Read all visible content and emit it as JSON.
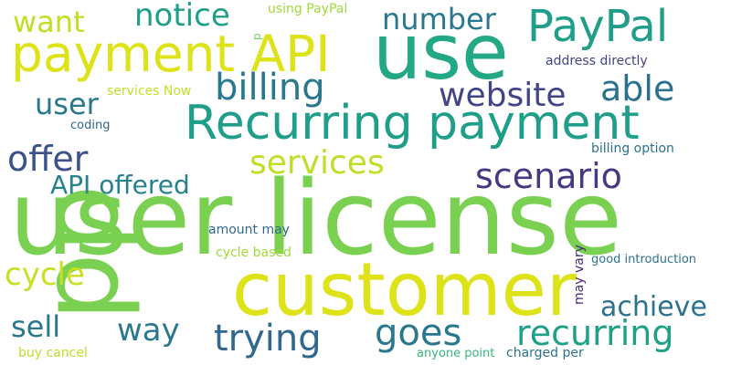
{
  "word_cloud": {
    "words": [
      {
        "text": "user license",
        "color": "#7ad151"
      },
      {
        "text": "pp",
        "color": "#7ad151"
      },
      {
        "text": "customer",
        "color": "#dde318"
      },
      {
        "text": "Recurring payment",
        "color": "#1f9e89"
      },
      {
        "text": "use",
        "color": "#22a884"
      },
      {
        "text": "payment API",
        "color": "#dde318"
      },
      {
        "text": "PayPal",
        "color": "#1f9e89"
      },
      {
        "text": "billing",
        "color": "#2a788e"
      },
      {
        "text": "website",
        "color": "#414487"
      },
      {
        "text": "scenario",
        "color": "#443983"
      },
      {
        "text": "trying",
        "color": "#31688e"
      },
      {
        "text": "recurring",
        "color": "#1fa187"
      },
      {
        "text": "goes",
        "color": "#2a788e"
      },
      {
        "text": "services",
        "color": "#bddf26"
      },
      {
        "text": "offer",
        "color": "#3b528b"
      },
      {
        "text": "able",
        "color": "#2c728e"
      },
      {
        "text": "number",
        "color": "#2a788e"
      },
      {
        "text": "notice",
        "color": "#1f9e89"
      },
      {
        "text": "want",
        "color": "#c2df23"
      },
      {
        "text": "user",
        "color": "#2a788e"
      },
      {
        "text": "API offered",
        "color": "#26828e"
      },
      {
        "text": "cycle",
        "color": "#c8e020"
      },
      {
        "text": "sell",
        "color": "#2a788e"
      },
      {
        "text": "way",
        "color": "#2a788e"
      },
      {
        "text": "achieve",
        "color": "#2c728e"
      },
      {
        "text": "using PayPal",
        "color": "#9fda3a"
      },
      {
        "text": "address directly",
        "color": "#414487"
      },
      {
        "text": "services Now",
        "color": "#c2df23"
      },
      {
        "text": "coding",
        "color": "#31688e"
      },
      {
        "text": "billing option",
        "color": "#2c728e"
      },
      {
        "text": "amount may",
        "color": "#31688e"
      },
      {
        "text": "cycle based",
        "color": "#a0da39"
      },
      {
        "text": "good introduction",
        "color": "#2c728e"
      },
      {
        "text": "may vary",
        "color": "#482878"
      },
      {
        "text": "buy cancel",
        "color": "#bddf26"
      },
      {
        "text": "anyone point",
        "color": "#35b779"
      },
      {
        "text": "charged per",
        "color": "#2c728e"
      },
      {
        "text": "p",
        "color": "#6ece58"
      }
    ]
  }
}
